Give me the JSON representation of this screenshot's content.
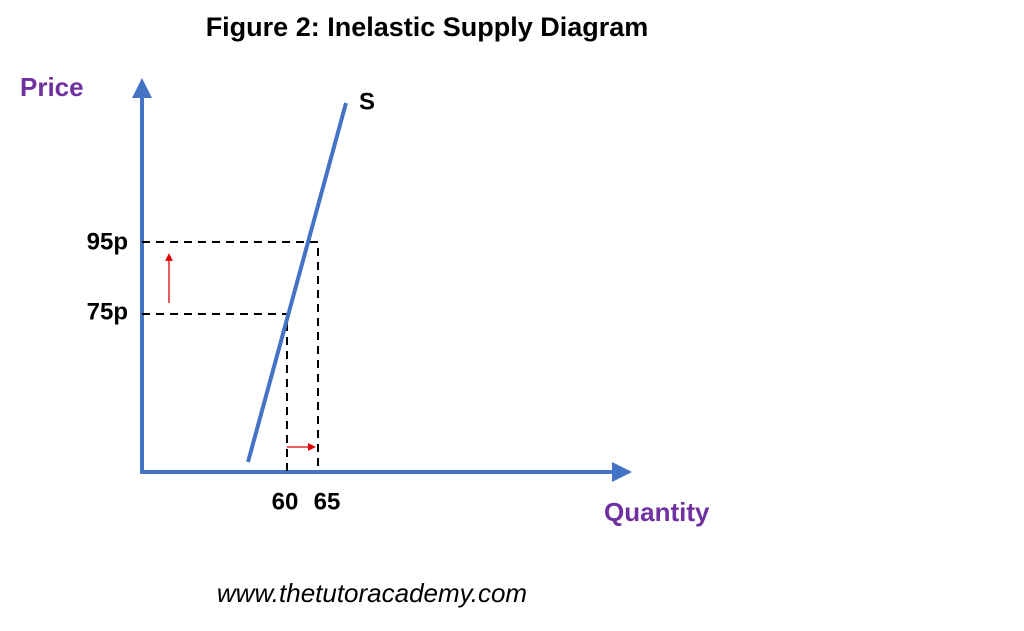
{
  "title": "Figure 2: Inelastic Supply Diagram",
  "axes": {
    "y_label": "Price",
    "x_label": "Quantity"
  },
  "curve": {
    "label": "S"
  },
  "price_levels": [
    "95p",
    "75p"
  ],
  "quantity_levels": [
    "60",
    "65"
  ],
  "footer": "www.thetutoracademy.com"
}
